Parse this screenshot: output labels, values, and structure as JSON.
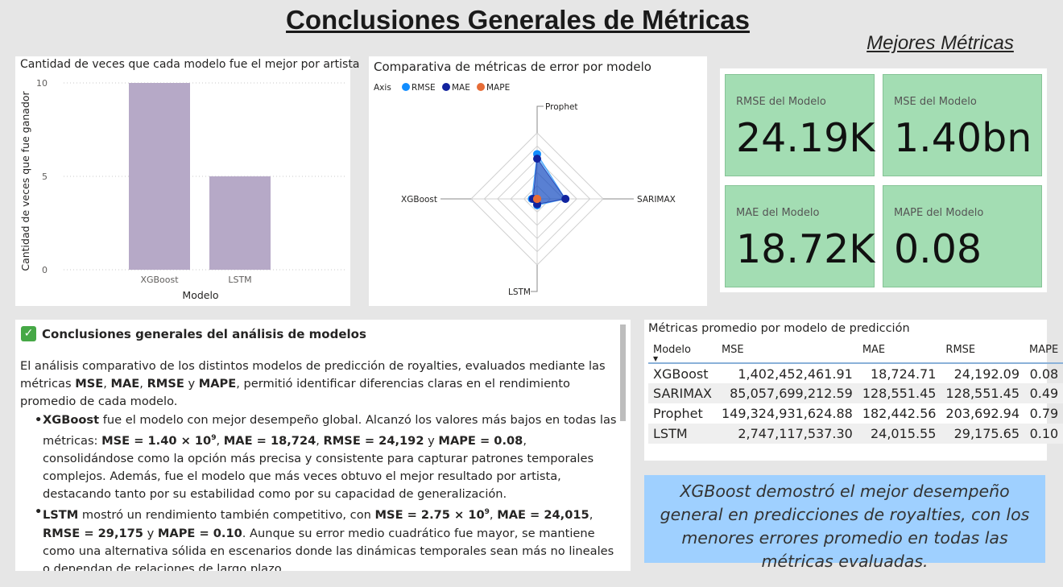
{
  "page": {
    "title": "Conclusiones Generales de Métricas",
    "best_metrics_title": "Mejores Métricas"
  },
  "bar_chart": {
    "title": "Cantidad de veces que cada modelo fue el mejor por artista",
    "chart_data": {
      "type": "bar",
      "categories": [
        "XGBoost",
        "LSTM"
      ],
      "values": [
        10,
        5
      ],
      "title": "Cantidad de veces que cada modelo fue el mejor por artista",
      "xlabel": "Modelo",
      "ylabel": "Cantidad de veces que fue ganador",
      "ylim": [
        0,
        10
      ],
      "yticks": [
        "0",
        "5",
        "10"
      ],
      "color": "#b6a9c7",
      "grid": true
    }
  },
  "radar_chart": {
    "title": "Comparativa de métricas de error por modelo",
    "legend_title": "Axis",
    "chart_data": {
      "type": "radar",
      "axes": [
        "Prophet",
        "SARIMAX",
        "LSTM",
        "XGBoost"
      ],
      "series": [
        {
          "name": "RMSE",
          "color": "#118dff",
          "values": [
            203692.94,
            128551.45,
            29175.65,
            24192.09
          ]
        },
        {
          "name": "MAE",
          "color": "#12239e",
          "values": [
            182442.56,
            128551.45,
            24015.55,
            18724.71
          ]
        },
        {
          "name": "MAPE",
          "color": "#e66c37",
          "values": [
            0.79,
            0.49,
            0.1,
            0.08
          ]
        }
      ],
      "rmax": 300000,
      "legend_position": "top-left"
    }
  },
  "kpis": [
    {
      "label": "RMSE del Modelo",
      "value": "24.19K"
    },
    {
      "label": "MSE del Modelo",
      "value": "1.40bn"
    },
    {
      "label": "MAE del Modelo",
      "value": "18.72K"
    },
    {
      "label": "MAPE del Modelo",
      "value": "0.08"
    }
  ],
  "conclusions": {
    "icon": "check-mark-button-icon",
    "header": "Conclusiones generales del análisis de modelos",
    "intro": {
      "p1": "El análisis comparativo de los distintos modelos de predicción de royalties, evaluados mediante las métricas ",
      "m1": "MSE",
      "c1": ", ",
      "m2": "MAE",
      "c2": ", ",
      "m3": "RMSE",
      "c3": " y ",
      "m4": "MAPE",
      "p2": ", permitió identificar diferencias claras en el rendimiento promedio de cada modelo."
    },
    "xgb": {
      "name": "XGBoost",
      "t1": " fue el modelo con mejor desempeño global. Alcanzó los valores más bajos en todas las métricas: ",
      "mse": "MSE = 1.40 × 10",
      "mse_exp": "9",
      "c1": ", ",
      "mae": "MAE = 18,724",
      "c2": ", ",
      "rmse": "RMSE = 24,192",
      "c3": " y ",
      "mape": "MAPE = 0.08",
      "t2": ", consolidándose como la opción más precisa y consistente para capturar patrones temporales complejos. Además, fue el modelo que más veces obtuvo el mejor resultado por artista, destacando tanto por su estabilidad como por su capacidad de generalización."
    },
    "lstm": {
      "name": "LSTM",
      "t1": " mostró un rendimiento también competitivo, con ",
      "mse": "MSE = 2.75 × 10",
      "mse_exp": "9",
      "c1": ", ",
      "mae": "MAE = 24,015",
      "c2": ", ",
      "rmse": "RMSE = 29,175",
      "c3": " y ",
      "mape": "MAPE = 0.10",
      "t2": ". Aunque su error medio cuadrático fue mayor, se mantiene como una alternativa sólida en escenarios donde las dinámicas temporales sean más no lineales o dependan de relaciones de largo plazo."
    }
  },
  "table": {
    "title": "Métricas promedio por modelo de predicción",
    "sort_icon": "sort-descending-icon",
    "headers": [
      "Modelo",
      "MSE",
      "MAE",
      "RMSE",
      "MAPE"
    ],
    "rows": [
      [
        "XGBoost",
        "1,402,452,461.91",
        "18,724.71",
        "24,192.09",
        "0.08"
      ],
      [
        "SARIMAX",
        "85,057,699,212.59",
        "128,551.45",
        "128,551.45",
        "0.49"
      ],
      [
        "Prophet",
        "149,324,931,624.88",
        "182,442.56",
        "203,692.94",
        "0.79"
      ],
      [
        "LSTM",
        "2,747,117,537.30",
        "24,015.55",
        "29,175.65",
        "0.10"
      ]
    ]
  },
  "callout": {
    "text": "XGBoost demostró el mejor desempeño general en predicciones de royalties, con los menores errores promedio en todas las métricas evaluadas."
  }
}
